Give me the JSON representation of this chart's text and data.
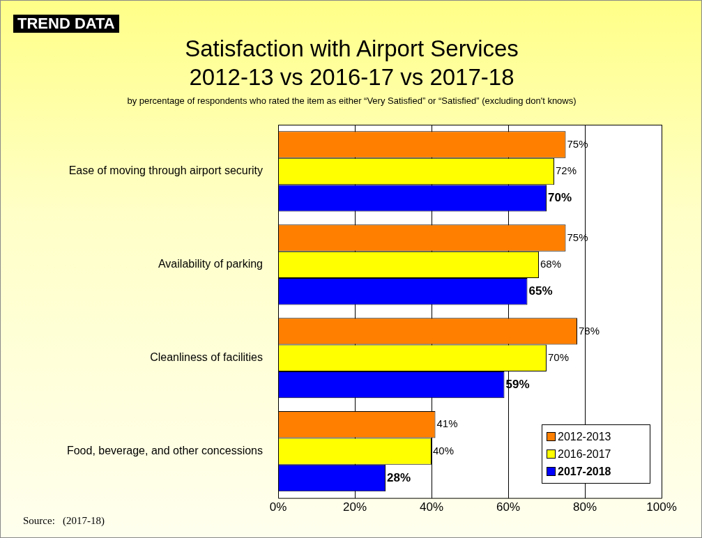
{
  "chart_data": {
    "type": "bar",
    "orientation": "horizontal",
    "title": "Satisfaction with Airport Services",
    "subtitle": "2012-13 vs 2016-17 vs 2017-18",
    "annotations": [
      "TREND DATA",
      "by percentage of respondents who rated the item as either “Very Satisfied” or “Satisfied” (excluding don't knows)",
      "Source:   (2017-18)"
    ],
    "categories": [
      "Ease of moving through airport security",
      "Availability of parking",
      "Cleanliness of facilities",
      "Food, beverage, and other concessions"
    ],
    "series": [
      {
        "name": "2012-2013",
        "color": "#ff8000",
        "values": [
          75,
          75,
          78,
          41
        ],
        "value_labels": [
          "75%",
          "75%",
          "78%",
          "41%"
        ]
      },
      {
        "name": "2016-2017",
        "color": "#ffff00",
        "values": [
          72,
          68,
          70,
          40
        ],
        "value_labels": [
          "72%",
          "68%",
          "70%",
          "40%"
        ]
      },
      {
        "name": "2017-2018",
        "color": "#0000ff",
        "values": [
          70,
          65,
          59,
          28
        ],
        "value_labels": [
          "70%",
          "65%",
          "59%",
          "28%"
        ]
      }
    ],
    "xlim": [
      0,
      100
    ],
    "xticks": [
      {
        "value": 0,
        "label": "0%"
      },
      {
        "value": 20,
        "label": "20%"
      },
      {
        "value": 40,
        "label": "40%"
      },
      {
        "value": 60,
        "label": "60%"
      },
      {
        "value": 80,
        "label": "80%"
      },
      {
        "value": 100,
        "label": "100%"
      }
    ],
    "grid": "x",
    "legend": "bottom right"
  }
}
